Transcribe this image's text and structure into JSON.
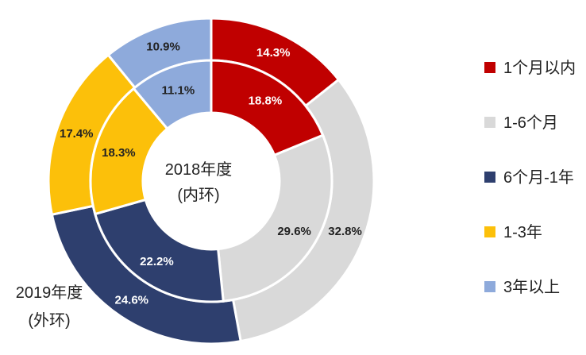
{
  "chart_data": {
    "type": "pie",
    "categories": [
      "1个月以内",
      "1-6个月",
      "6个月-1年",
      "1-3年",
      "3年以上"
    ],
    "colors": [
      "#c00000",
      "#d9d9d9",
      "#2e3f6e",
      "#fcc00a",
      "#8eaadb"
    ],
    "series": [
      {
        "name": "2018年度",
        "name_note": "(内环)",
        "ring": "inner",
        "values": [
          18.8,
          29.6,
          22.2,
          18.3,
          11.1
        ]
      },
      {
        "name": "2019年度",
        "name_note": "(外环)",
        "ring": "outer",
        "values": [
          14.3,
          32.8,
          24.6,
          17.4,
          10.9
        ]
      }
    ],
    "value_suffix": "%",
    "legend": "right"
  }
}
